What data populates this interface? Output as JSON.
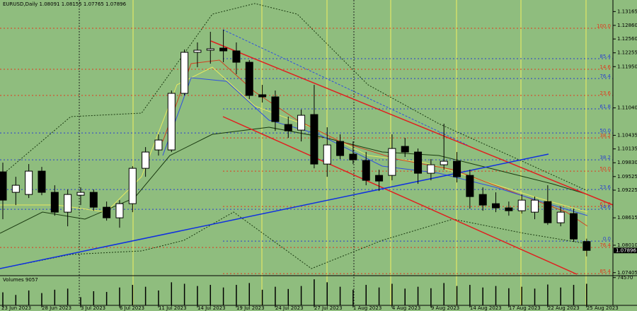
{
  "chart_data": {
    "type": "candlestick",
    "title": "EURUSD,Daily",
    "volume_title": "Volumes 9057",
    "categories": [
      "23 Jun 2023",
      null,
      null,
      "28 Jun 2023",
      null,
      null,
      "3 Jul 2023",
      null,
      null,
      "6 Jul 2023",
      null,
      null,
      "11 Jul 2023",
      null,
      null,
      "14 Jul 2023",
      null,
      null,
      "19 Jul 2023",
      null,
      null,
      "24 Jul 2023",
      null,
      null,
      "27 Jul 2023",
      null,
      null,
      "1 Aug 2023",
      null,
      null,
      "4 Aug 2023",
      null,
      null,
      "9 Aug 2023",
      null,
      null,
      "14 Aug 2023",
      null,
      null,
      "17 Aug 2023",
      null,
      null,
      "22 Aug 2023",
      null,
      null,
      "25 Aug 2023"
    ],
    "open": [
      1.09629,
      1.09177,
      1.0913,
      1.09645,
      1.09177,
      1.0874,
      1.09114,
      1.09177,
      1.08849,
      1.08615,
      1.08927,
      1.09707,
      1.10113,
      1.10113,
      1.11361,
      1.12266,
      1.12312,
      1.12359,
      1.12297,
      1.12047,
      1.1133,
      1.11283,
      1.10674,
      1.1055,
      1.10893,
      1.09801,
      1.103,
      1.10019,
      1.09879,
      1.09551,
      1.09551,
      1.10191,
      1.10066,
      1.09598,
      1.09785,
      1.09863,
      1.09551,
      1.0913,
      1.08927,
      1.08834,
      1.08771,
      1.0874,
      1.08974,
      1.08506,
      1.08709,
      1.08091
    ],
    "high": [
      1.09832,
      1.0952,
      1.09801,
      1.09738,
      1.09333,
      1.09239,
      1.09286,
      1.09239,
      1.08974,
      1.09005,
      1.09754,
      1.10175,
      1.10456,
      1.11423,
      1.12328,
      1.12484,
      1.12718,
      1.12765,
      1.12484,
      1.12094,
      1.11548,
      1.11423,
      1.10846,
      1.11002,
      1.11548,
      1.10612,
      1.10456,
      1.103,
      1.10066,
      1.09676,
      1.10456,
      1.10378,
      1.10144,
      1.0991,
      1.1069,
      1.10066,
      1.09676,
      1.09286,
      1.09177,
      1.08974,
      1.0913,
      1.09083,
      1.09333,
      1.08865,
      1.08818,
      1.08155
    ],
    "low": [
      1.08584,
      1.08896,
      1.09052,
      1.09114,
      1.08662,
      1.08428,
      1.08896,
      1.08771,
      1.08553,
      1.08397,
      1.0874,
      1.0952,
      1.09988,
      1.10066,
      1.11314,
      1.11938,
      1.12016,
      1.12047,
      1.11782,
      1.11236,
      1.11158,
      1.10534,
      1.10378,
      1.103,
      1.09707,
      1.0952,
      1.0991,
      1.09801,
      1.09333,
      1.09208,
      1.09442,
      1.09957,
      1.09364,
      1.09442,
      1.09676,
      1.09395,
      1.08818,
      1.08771,
      1.0874,
      1.08662,
      1.08709,
      1.08584,
      1.08459,
      1.08428,
      1.08085,
      1.07765
    ],
    "close": [
      1.09005,
      1.09333,
      1.09645,
      1.09177,
      1.0874,
      1.0913,
      1.09177,
      1.08849,
      1.08615,
      1.08927,
      1.09707,
      1.10066,
      1.10331,
      1.11361,
      1.12266,
      1.12312,
      1.12344,
      1.12297,
      1.12047,
      1.11314,
      1.11283,
      1.10737,
      1.10534,
      1.10877,
      1.09801,
      1.10222,
      1.09988,
      1.09894,
      1.09442,
      1.09426,
      1.10144,
      1.10066,
      1.09598,
      1.09785,
      1.09863,
      1.0952,
      1.09083,
      1.08896,
      1.08834,
      1.08771,
      1.09005,
      1.09005,
      1.08506,
      1.0874,
      1.08147,
      1.07896
    ],
    "volumes": [
      35000,
      28000,
      40000,
      33000,
      42000,
      45000,
      22000,
      38000,
      36000,
      48000,
      55000,
      50000,
      40000,
      62000,
      58000,
      52000,
      55000,
      48000,
      55000,
      60000,
      42000,
      50000,
      44000,
      52000,
      70000,
      62000,
      50000,
      42000,
      55000,
      48000,
      58000,
      45000,
      50000,
      46000,
      60000,
      52000,
      55000,
      48000,
      52000,
      46000,
      50000,
      45000,
      56000,
      48000,
      55000,
      58000
    ],
    "ylim": [
      1.0737,
      1.1342
    ],
    "yticks": [
      {
        "value": 1.13165,
        "label": "1.13165"
      },
      {
        "value": 1.1286,
        "label": "1.12860"
      },
      {
        "value": 1.1256,
        "label": "1.12560"
      },
      {
        "value": 1.12255,
        "label": "1.12255"
      },
      {
        "value": 1.1195,
        "label": "1.11950"
      },
      {
        "value": 1.1104,
        "label": "1.11040"
      },
      {
        "value": 1.10435,
        "label": "1.10435"
      },
      {
        "value": 1.10135,
        "label": "1.10135"
      },
      {
        "value": 1.0983,
        "label": "1.09830"
      },
      {
        "value": 1.09525,
        "label": "1.09525"
      },
      {
        "value": 1.09225,
        "label": "1.09225"
      },
      {
        "value": 1.08615,
        "label": "1.08615"
      },
      {
        "value": 1.0801,
        "label": "1.08010"
      },
      {
        "value": 1.07405,
        "label": "1.07405"
      }
    ],
    "volume_ylim": [
      0,
      76000
    ],
    "volume_yticks": [
      74570
    ],
    "up_color": "#ffffff",
    "down_color": "#000000",
    "fibo_levels": [
      {
        "label": "100.0",
        "price": 1.12796,
        "color": "#e03a1e"
      },
      {
        "label": "85.4",
        "price": 1.12125,
        "color": "#2a3fd0"
      },
      {
        "label": "14.6",
        "price": 1.11891,
        "color": "#e03a1e"
      },
      {
        "label": "76.4",
        "price": 1.11688,
        "color": "#2a3fd0"
      },
      {
        "label": "23.6",
        "price": 1.11314,
        "color": "#e03a1e"
      },
      {
        "label": "61.8",
        "price": 1.11018,
        "color": "#2a3fd0"
      },
      {
        "label": "50.0",
        "price": 1.10487,
        "color": "#2a3fd0"
      },
      {
        "label": "38.2",
        "price": 1.10378,
        "color": "#e03a1e"
      },
      {
        "label": "38.2",
        "price": 1.09894,
        "color": "#2a3fd0"
      },
      {
        "label": "50.0",
        "price": 1.09645,
        "color": "#e03a1e"
      },
      {
        "label": "23.6",
        "price": 1.09239,
        "color": "#2a3fd0"
      },
      {
        "label": "61.8",
        "price": 1.08865,
        "color": "#e03a1e"
      },
      {
        "label": "14.6",
        "price": 1.08802,
        "color": "#2a3fd0"
      },
      {
        "label": "0.0",
        "price": 1.081,
        "color": "#2a3fd0"
      },
      {
        "label": "76.4",
        "price": 1.0796,
        "color": "#e03a1e"
      },
      {
        "label": "85.4",
        "price": 1.07383,
        "color": "#e03a1e"
      }
    ]
  }
}
